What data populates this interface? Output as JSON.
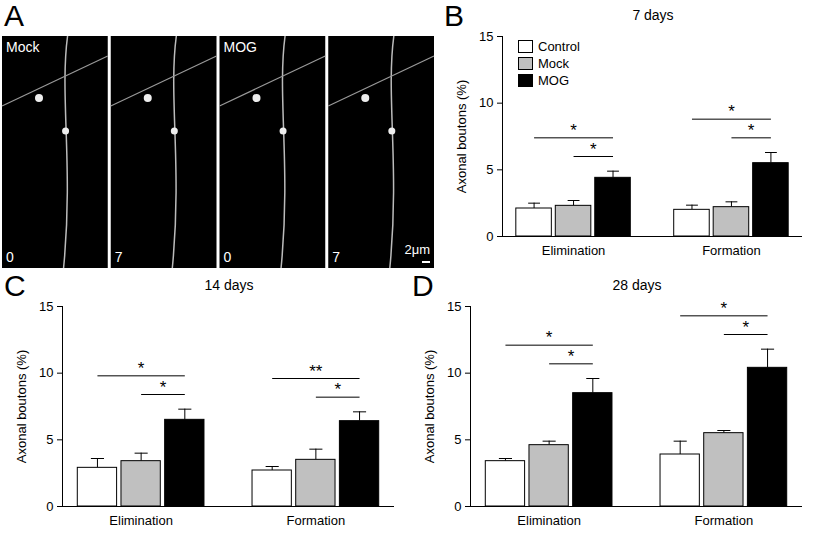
{
  "image_panel": {
    "panel": "A",
    "frames": [
      {
        "label": "Mock",
        "time": "0"
      },
      {
        "time": "7"
      },
      {
        "label": "MOG",
        "time": "0"
      },
      {
        "time": "7"
      }
    ],
    "scale_bar": "2μm"
  },
  "chart_data": [
    {
      "panel": "B",
      "type": "bar",
      "title": "7 days",
      "y_label": "Axonal boutons (%)",
      "categories": [
        "Elimination",
        "Formation"
      ],
      "series": [
        {
          "name": "Control",
          "color": "#ffffff",
          "values": [
            2.1,
            2.0
          ],
          "errors": [
            0.4,
            0.35
          ]
        },
        {
          "name": "Mock",
          "color": "#c0c0c0",
          "values": [
            2.3,
            2.2
          ],
          "errors": [
            0.4,
            0.4
          ]
        },
        {
          "name": "MOG",
          "color": "#000000",
          "values": [
            4.4,
            5.5
          ],
          "errors": [
            0.5,
            0.8
          ]
        }
      ],
      "ylim": [
        0,
        15
      ],
      "yticks": [
        0,
        5,
        10,
        15
      ],
      "legend": "top-left",
      "significance": [
        {
          "category": "Elimination",
          "from": "Control",
          "to": "MOG",
          "label": "*"
        },
        {
          "category": "Elimination",
          "from": "Mock",
          "to": "MOG",
          "label": "*"
        },
        {
          "category": "Formation",
          "from": "Control",
          "to": "MOG",
          "label": "*"
        },
        {
          "category": "Formation",
          "from": "Mock",
          "to": "MOG",
          "label": "*"
        }
      ]
    },
    {
      "panel": "C",
      "type": "bar",
      "title": "14 days",
      "y_label": "Axonal boutons (%)",
      "categories": [
        "Elimination",
        "Formation"
      ],
      "series": [
        {
          "name": "Control",
          "color": "#ffffff",
          "values": [
            2.9,
            2.7
          ],
          "errors": [
            0.7,
            0.3
          ]
        },
        {
          "name": "Mock",
          "color": "#c0c0c0",
          "values": [
            3.4,
            3.5
          ],
          "errors": [
            0.6,
            0.8
          ]
        },
        {
          "name": "MOG",
          "color": "#000000",
          "values": [
            6.5,
            6.4
          ],
          "errors": [
            0.8,
            0.7
          ]
        }
      ],
      "ylim": [
        0,
        15
      ],
      "yticks": [
        0,
        5,
        10,
        15
      ],
      "significance": [
        {
          "category": "Elimination",
          "from": "Control",
          "to": "MOG",
          "label": "*"
        },
        {
          "category": "Elimination",
          "from": "Mock",
          "to": "MOG",
          "label": "*"
        },
        {
          "category": "Formation",
          "from": "Control",
          "to": "MOG",
          "label": "**"
        },
        {
          "category": "Formation",
          "from": "Mock",
          "to": "MOG",
          "label": "*"
        }
      ]
    },
    {
      "panel": "D",
      "type": "bar",
      "title": "28 days",
      "y_label": "Axonal boutons (%)",
      "categories": [
        "Elimination",
        "Formation"
      ],
      "series": [
        {
          "name": "Control",
          "color": "#ffffff",
          "values": [
            3.4,
            3.9
          ],
          "errors": [
            0.2,
            1.0
          ]
        },
        {
          "name": "Mock",
          "color": "#c0c0c0",
          "values": [
            4.6,
            5.5
          ],
          "errors": [
            0.3,
            0.2
          ]
        },
        {
          "name": "MOG",
          "color": "#000000",
          "values": [
            8.5,
            10.4
          ],
          "errors": [
            1.1,
            1.4
          ]
        }
      ],
      "ylim": [
        0,
        15
      ],
      "yticks": [
        0,
        5,
        10,
        15
      ],
      "significance": [
        {
          "category": "Elimination",
          "from": "Control",
          "to": "MOG",
          "label": "*"
        },
        {
          "category": "Elimination",
          "from": "Mock",
          "to": "MOG",
          "label": "*"
        },
        {
          "category": "Formation",
          "from": "Control",
          "to": "MOG",
          "label": "*"
        },
        {
          "category": "Formation",
          "from": "Mock",
          "to": "MOG",
          "label": "*"
        }
      ]
    }
  ]
}
